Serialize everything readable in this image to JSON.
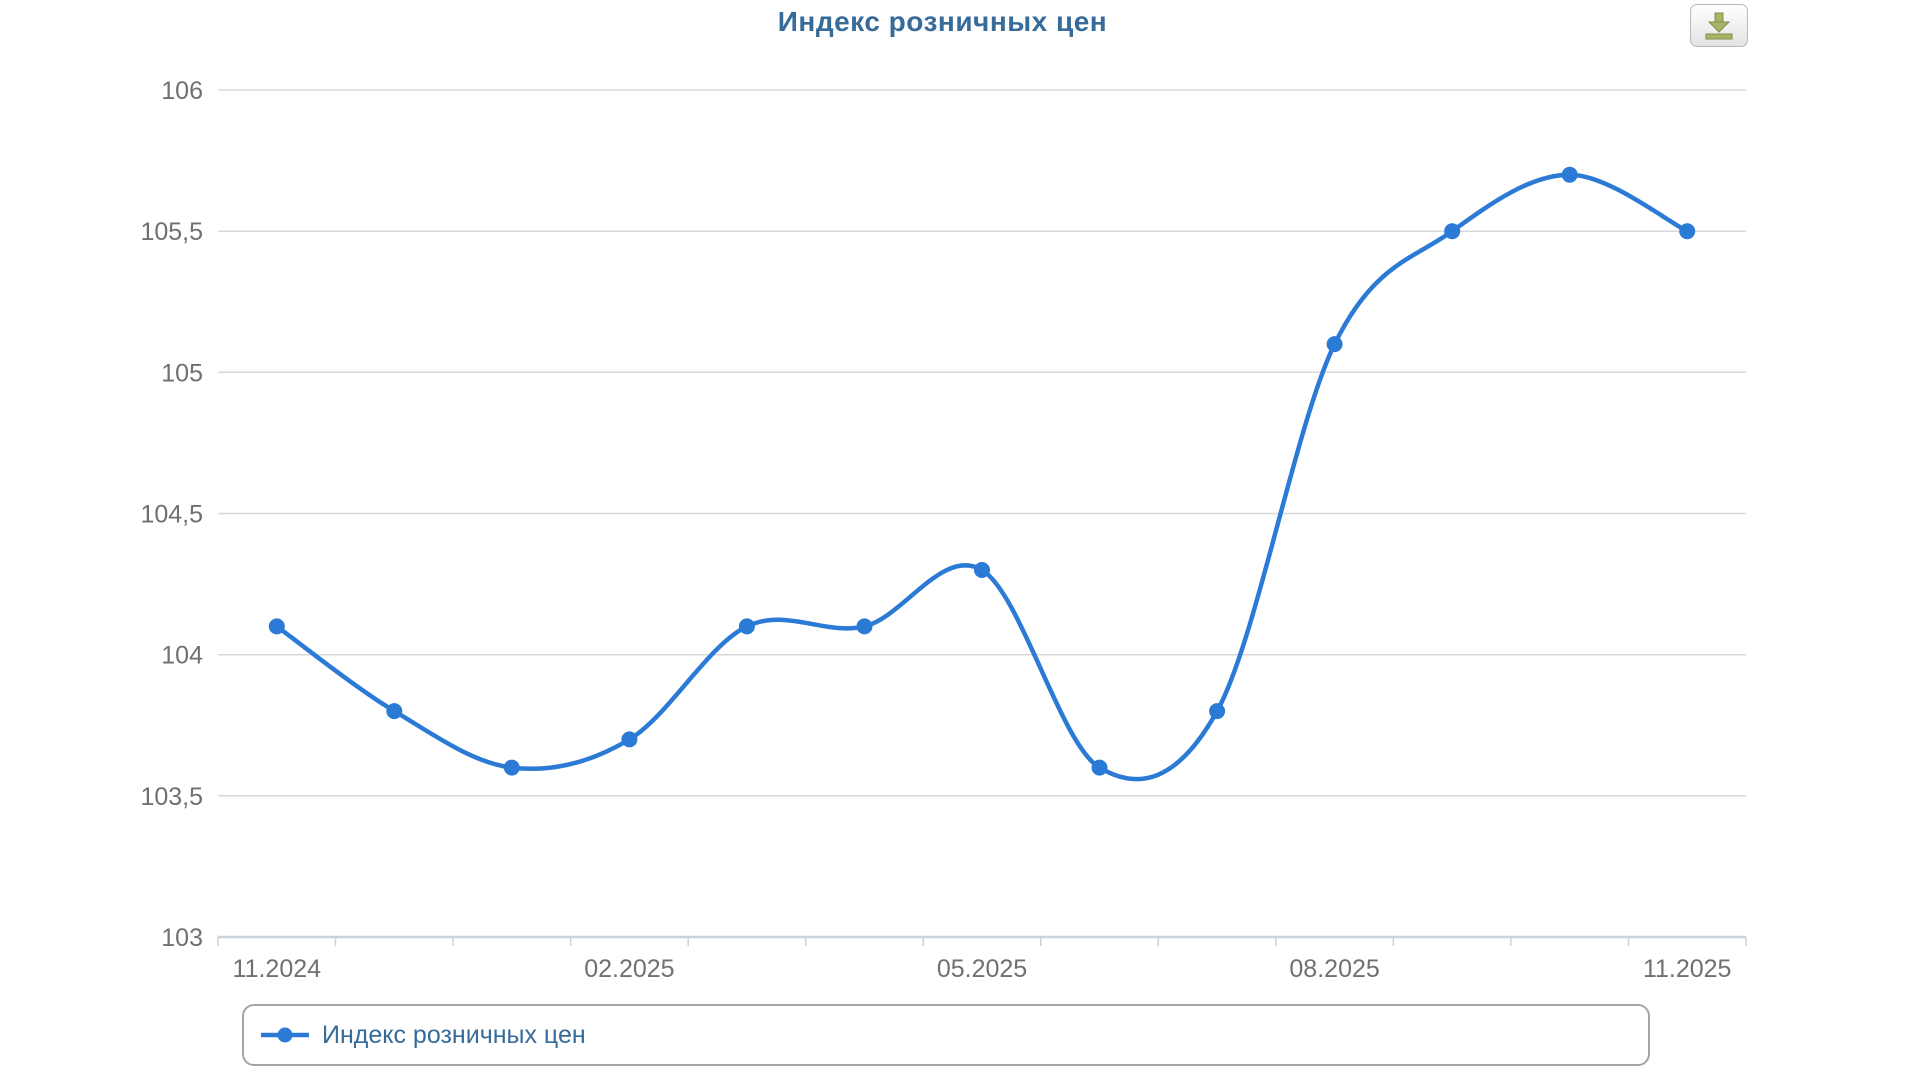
{
  "title": "Индекс розничных цен",
  "toolbar": {
    "download_icon": "download-arrow-to-tray"
  },
  "legend": {
    "label": "Индекс розничных цен"
  },
  "colors": {
    "accent_blue": "#2b7ad5",
    "title_text": "#376b99",
    "axis_label": "#707070",
    "gridline": "#d9d9d9",
    "axis_line": "#c9d2d8",
    "legend_border": "#a5a5a5",
    "icon_olive_fill": "#a8b465",
    "icon_olive_stroke": "#7f8f4d"
  },
  "chart_data": {
    "type": "line",
    "title": "Индекс розничных цен",
    "categories": [
      "11.2024",
      "12.2024",
      "01.2025",
      "02.2025",
      "03.2025",
      "04.2025",
      "05.2025",
      "06.2025",
      "07.2025",
      "08.2025",
      "09.2025",
      "10.2025",
      "11.2025"
    ],
    "series": [
      {
        "name": "Индекс розничных цен",
        "values": [
          104.1,
          103.8,
          103.6,
          103.7,
          104.1,
          104.1,
          104.3,
          103.6,
          103.8,
          105.1,
          105.5,
          105.7,
          105.5
        ]
      }
    ],
    "x_tick_labels": [
      {
        "index": 0,
        "label": "11.2024"
      },
      {
        "index": 3,
        "label": "02.2025"
      },
      {
        "index": 6,
        "label": "05.2025"
      },
      {
        "index": 9,
        "label": "08.2025"
      },
      {
        "index": 12,
        "label": "11.2025"
      }
    ],
    "y_ticks": [
      {
        "value": 106,
        "label": "106"
      },
      {
        "value": 105.5,
        "label": "105,5"
      },
      {
        "value": 105,
        "label": "105"
      },
      {
        "value": 104.5,
        "label": "104,5"
      },
      {
        "value": 104,
        "label": "104"
      },
      {
        "value": 103.5,
        "label": "103,5"
      },
      {
        "value": 103,
        "label": "103"
      }
    ],
    "ylim": [
      103,
      106
    ],
    "xlabel": "",
    "ylabel": "",
    "grid": "horizontal",
    "legend_position": "bottom",
    "decimal_separator": ","
  }
}
